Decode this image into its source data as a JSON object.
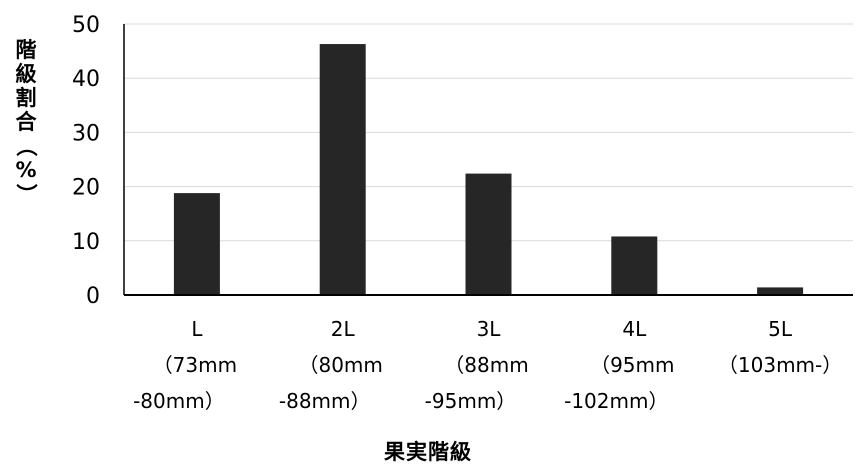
{
  "chart_data": {
    "type": "bar",
    "title": "",
    "xlabel": "果実階級",
    "ylabel": "階級割合（%）",
    "ylim": [
      0,
      50
    ],
    "yticks": [
      "0",
      "10",
      "20",
      "30",
      "40",
      "50"
    ],
    "categories": [
      "L（73mm-80mm）",
      "2L（80mm-88mm）",
      "3L（88mm-95mm）",
      "4L（95mm-102mm）",
      "5L（103mm-）"
    ],
    "category_label_lines": [
      [
        "L",
        "（73mm",
        "-80mm）"
      ],
      [
        "2L",
        "（80mm",
        "-88mm）"
      ],
      [
        "3L",
        "（88mm",
        "-95mm）"
      ],
      [
        "4L",
        "（95mm",
        "-102mm）"
      ],
      [
        "5L",
        "（103mm-）"
      ]
    ],
    "values": [
      18.8,
      46.3,
      22.4,
      10.8,
      1.4
    ],
    "grid": true,
    "legend": "none",
    "colors": {
      "bar": "#262626",
      "grid": "#d9d9d9",
      "axis": "#000000"
    }
  }
}
